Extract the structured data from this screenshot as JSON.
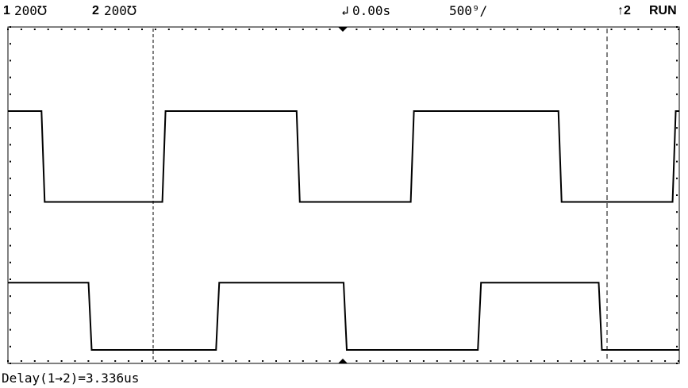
{
  "status_bar": {
    "ch1_number": "1",
    "ch1_scale": "200℧",
    "ch2_number": "2",
    "ch2_scale": "200℧",
    "trigger_icon": "↲",
    "time_offset": "0.00s",
    "timebase": "500⁹/",
    "trigger_source": "↑2",
    "run_state": "RUN"
  },
  "measurement": {
    "readout": "Delay(1→2)=3.336us"
  },
  "colors": {
    "background": "#ffffff",
    "trace": "#000000",
    "grid": "#000000"
  },
  "traces": {
    "channel1": {
      "low_level": 0.25,
      "high_level": 0.52,
      "transitions": [
        0.05,
        0.23,
        0.43,
        0.6,
        0.82,
        0.99
      ]
    },
    "channel2": {
      "low_level": 0.76,
      "high_level": 0.96,
      "transitions": [
        0.12,
        0.31,
        0.5,
        0.7,
        0.88
      ]
    }
  }
}
